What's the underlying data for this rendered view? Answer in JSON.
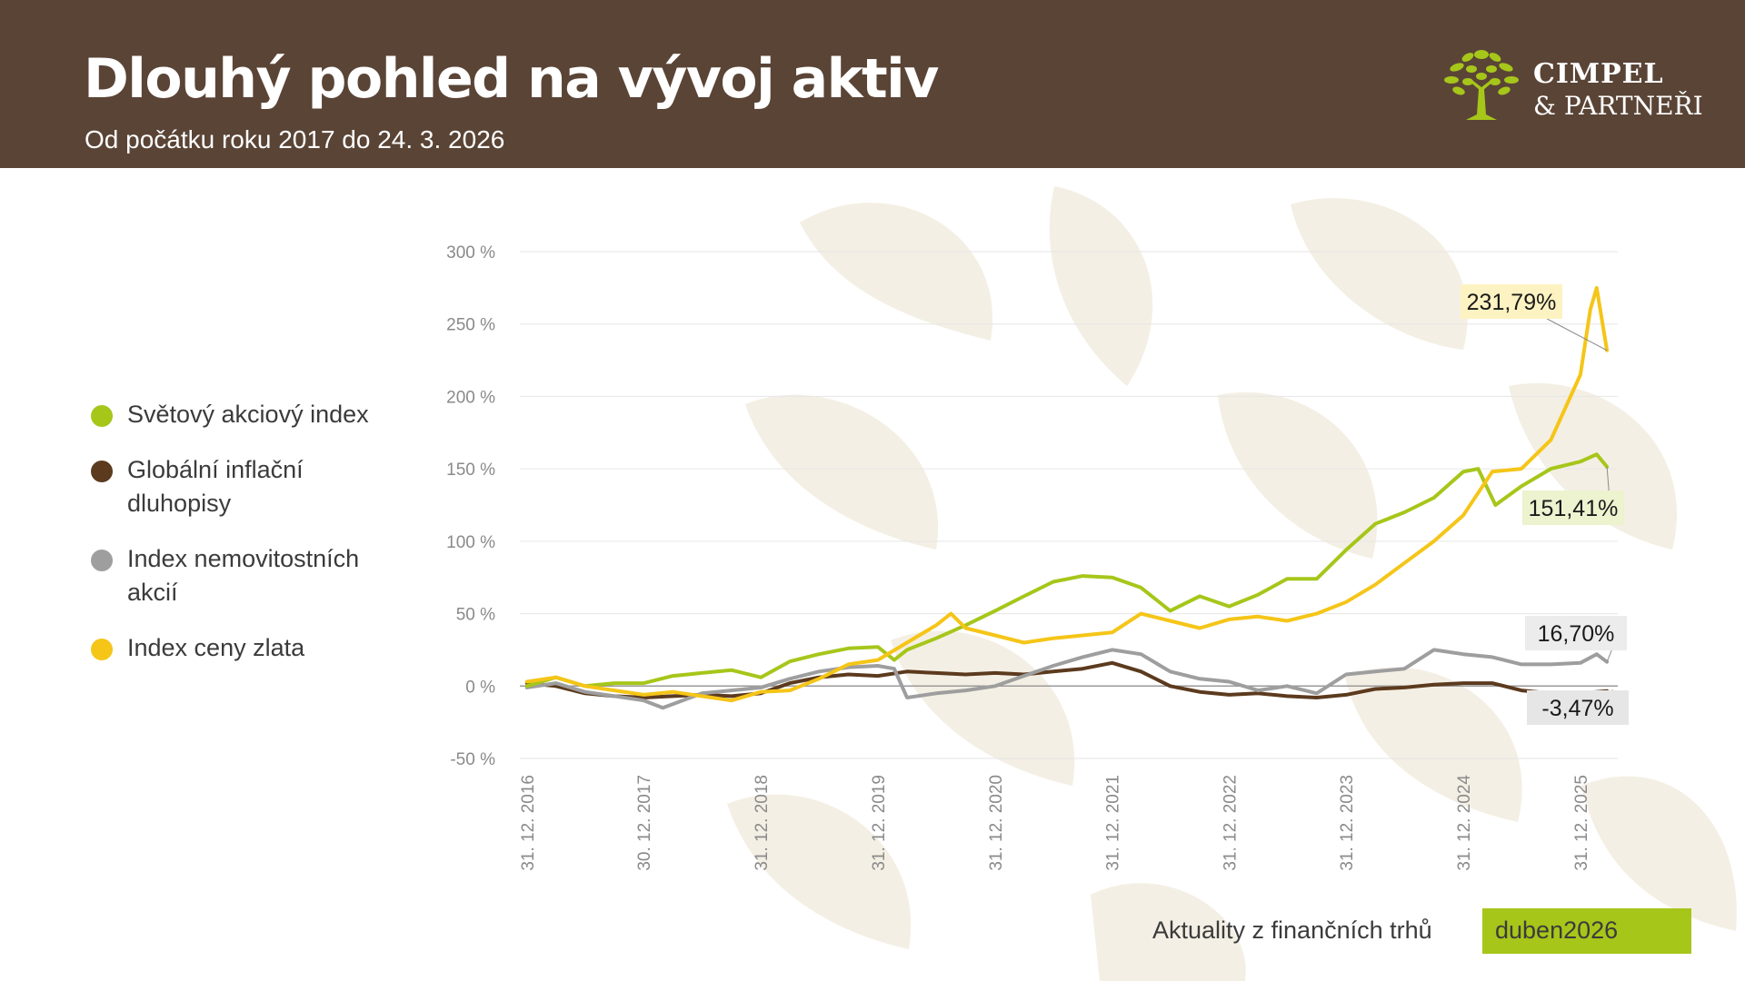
{
  "header": {
    "title": "Dlouhý pohled na vývoj aktiv",
    "subtitle": "Od počátku roku 2017 do 24. 3. 2026"
  },
  "brand": {
    "line1": "CIMPEL",
    "line2": "& PARTNEŘI",
    "icon": "tree-icon"
  },
  "colors": {
    "header_bg": "#5a4436",
    "world_stocks": "#a6c61a",
    "inflation_bonds": "#5c3a1e",
    "real_estate": "#9e9e9e",
    "gold": "#f5c518",
    "badge": "#a6c61a"
  },
  "legend": [
    {
      "label_lines": [
        "Světový akciový index"
      ],
      "color": "#a6c61a"
    },
    {
      "label_lines": [
        "Globální inflační",
        "dluhopisy"
      ],
      "color": "#5c3a1e"
    },
    {
      "label_lines": [
        "Index nemovitostních",
        "akcií"
      ],
      "color": "#9e9e9e"
    },
    {
      "label_lines": [
        "Index ceny zlata"
      ],
      "color": "#f5c518"
    }
  ],
  "footer": {
    "text": "Aktuality z finančních trhů",
    "badge": "duben2026"
  },
  "chart_data": {
    "type": "line",
    "title": "",
    "xlabel": "",
    "ylabel": "",
    "ylim": [
      -50,
      300
    ],
    "y_ticks": [
      -50,
      0,
      50,
      100,
      150,
      200,
      250,
      300
    ],
    "y_tick_labels": [
      "-50 %",
      "0 %",
      "50 %",
      "100 %",
      "150 %",
      "200 %",
      "250 %",
      "300 %"
    ],
    "x_start": "2016-12-31",
    "x_end": "2026-03-24",
    "x_ticks": [
      {
        "date": "2016-12-31",
        "label": "31. 12. 2016"
      },
      {
        "date": "2017-12-30",
        "label": "30. 12. 2017"
      },
      {
        "date": "2018-12-31",
        "label": "31. 12. 2018"
      },
      {
        "date": "2019-12-31",
        "label": "31. 12. 2019"
      },
      {
        "date": "2020-12-31",
        "label": "31. 12. 2020"
      },
      {
        "date": "2021-12-31",
        "label": "31. 12. 2021"
      },
      {
        "date": "2022-12-31",
        "label": "31. 12. 2022"
      },
      {
        "date": "2023-12-31",
        "label": "31. 12. 2023"
      },
      {
        "date": "2024-12-31",
        "label": "31. 12. 2024"
      },
      {
        "date": "2025-12-31",
        "label": "31. 12. 2025"
      }
    ],
    "grid": true,
    "legend_position": "left",
    "series": [
      {
        "name": "Světový akciový index",
        "color": "#a6c61a",
        "end_label": "151,41%",
        "points": [
          [
            "2016-12-31",
            0
          ],
          [
            "2017-03-31",
            6
          ],
          [
            "2017-06-30",
            0
          ],
          [
            "2017-09-30",
            2
          ],
          [
            "2017-12-31",
            2
          ],
          [
            "2018-03-31",
            7
          ],
          [
            "2018-06-30",
            9
          ],
          [
            "2018-09-30",
            11
          ],
          [
            "2018-12-31",
            6
          ],
          [
            "2019-03-31",
            17
          ],
          [
            "2019-06-30",
            22
          ],
          [
            "2019-09-30",
            26
          ],
          [
            "2019-12-31",
            27
          ],
          [
            "2020-02-20",
            18
          ],
          [
            "2020-03-31",
            25
          ],
          [
            "2020-06-30",
            33
          ],
          [
            "2020-09-30",
            42
          ],
          [
            "2020-12-31",
            52
          ],
          [
            "2021-03-31",
            62
          ],
          [
            "2021-06-30",
            72
          ],
          [
            "2021-09-30",
            76
          ],
          [
            "2021-12-31",
            75
          ],
          [
            "2022-03-31",
            68
          ],
          [
            "2022-06-30",
            52
          ],
          [
            "2022-09-30",
            62
          ],
          [
            "2022-12-31",
            55
          ],
          [
            "2023-03-31",
            63
          ],
          [
            "2023-06-30",
            74
          ],
          [
            "2023-09-30",
            74
          ],
          [
            "2023-12-31",
            94
          ],
          [
            "2024-03-31",
            112
          ],
          [
            "2024-06-30",
            120
          ],
          [
            "2024-09-30",
            130
          ],
          [
            "2024-12-31",
            148
          ],
          [
            "2025-02-15",
            150
          ],
          [
            "2025-04-10",
            125
          ],
          [
            "2025-06-30",
            138
          ],
          [
            "2025-09-30",
            150
          ],
          [
            "2025-12-31",
            155
          ],
          [
            "2026-02-20",
            160
          ],
          [
            "2026-03-24",
            151.41
          ]
        ]
      },
      {
        "name": "Globální inflační dluhopisy",
        "color": "#5c3a1e",
        "end_label": "-3,47%",
        "points": [
          [
            "2016-12-31",
            2
          ],
          [
            "2017-03-31",
            0
          ],
          [
            "2017-06-30",
            -5
          ],
          [
            "2017-09-30",
            -7
          ],
          [
            "2017-12-31",
            -8
          ],
          [
            "2018-03-31",
            -7
          ],
          [
            "2018-06-30",
            -6
          ],
          [
            "2018-09-30",
            -7
          ],
          [
            "2018-12-31",
            -5
          ],
          [
            "2019-03-31",
            2
          ],
          [
            "2019-06-30",
            6
          ],
          [
            "2019-09-30",
            8
          ],
          [
            "2019-12-31",
            7
          ],
          [
            "2020-03-31",
            10
          ],
          [
            "2020-06-30",
            9
          ],
          [
            "2020-09-30",
            8
          ],
          [
            "2020-12-31",
            9
          ],
          [
            "2021-03-31",
            8
          ],
          [
            "2021-06-30",
            10
          ],
          [
            "2021-09-30",
            12
          ],
          [
            "2021-12-31",
            16
          ],
          [
            "2022-03-31",
            10
          ],
          [
            "2022-06-30",
            0
          ],
          [
            "2022-09-30",
            -4
          ],
          [
            "2022-12-31",
            -6
          ],
          [
            "2023-03-31",
            -5
          ],
          [
            "2023-06-30",
            -7
          ],
          [
            "2023-09-30",
            -8
          ],
          [
            "2023-12-31",
            -6
          ],
          [
            "2024-03-31",
            -2
          ],
          [
            "2024-06-30",
            -1
          ],
          [
            "2024-09-30",
            1
          ],
          [
            "2024-12-31",
            2
          ],
          [
            "2025-03-31",
            2
          ],
          [
            "2025-06-30",
            -3
          ],
          [
            "2025-09-30",
            -5
          ],
          [
            "2025-12-31",
            -5
          ],
          [
            "2026-03-24",
            -3.47
          ]
        ]
      },
      {
        "name": "Index nemovitostních akcií",
        "color": "#9e9e9e",
        "end_label": "16,70%",
        "points": [
          [
            "2016-12-31",
            -1
          ],
          [
            "2017-03-31",
            2
          ],
          [
            "2017-06-30",
            -4
          ],
          [
            "2017-09-30",
            -7
          ],
          [
            "2017-12-31",
            -10
          ],
          [
            "2018-02-28",
            -15
          ],
          [
            "2018-06-30",
            -5
          ],
          [
            "2018-09-30",
            -3
          ],
          [
            "2018-12-31",
            -1
          ],
          [
            "2019-03-31",
            5
          ],
          [
            "2019-06-30",
            10
          ],
          [
            "2019-09-30",
            13
          ],
          [
            "2019-12-31",
            14
          ],
          [
            "2020-02-20",
            12
          ],
          [
            "2020-03-31",
            -8
          ],
          [
            "2020-06-30",
            -5
          ],
          [
            "2020-09-30",
            -3
          ],
          [
            "2020-12-31",
            0
          ],
          [
            "2021-03-31",
            7
          ],
          [
            "2021-06-30",
            14
          ],
          [
            "2021-09-30",
            20
          ],
          [
            "2021-12-31",
            25
          ],
          [
            "2022-03-31",
            22
          ],
          [
            "2022-06-30",
            10
          ],
          [
            "2022-09-30",
            5
          ],
          [
            "2022-12-31",
            3
          ],
          [
            "2023-03-31",
            -3
          ],
          [
            "2023-06-30",
            0
          ],
          [
            "2023-09-30",
            -5
          ],
          [
            "2023-12-31",
            8
          ],
          [
            "2024-03-31",
            10
          ],
          [
            "2024-06-30",
            12
          ],
          [
            "2024-09-30",
            25
          ],
          [
            "2024-12-31",
            22
          ],
          [
            "2025-03-31",
            20
          ],
          [
            "2025-06-30",
            15
          ],
          [
            "2025-09-30",
            15
          ],
          [
            "2025-12-31",
            16
          ],
          [
            "2026-02-20",
            22
          ],
          [
            "2026-03-24",
            16.7
          ]
        ]
      },
      {
        "name": "Index ceny zlata",
        "color": "#f5c518",
        "end_label": "231,79%",
        "points": [
          [
            "2016-12-31",
            3
          ],
          [
            "2017-03-31",
            6
          ],
          [
            "2017-06-30",
            0
          ],
          [
            "2017-09-30",
            -3
          ],
          [
            "2017-12-31",
            -6
          ],
          [
            "2018-03-31",
            -4
          ],
          [
            "2018-06-30",
            -7
          ],
          [
            "2018-09-30",
            -10
          ],
          [
            "2018-12-31",
            -4
          ],
          [
            "2019-03-31",
            -3
          ],
          [
            "2019-06-30",
            5
          ],
          [
            "2019-09-30",
            15
          ],
          [
            "2019-12-31",
            18
          ],
          [
            "2020-03-31",
            30
          ],
          [
            "2020-06-30",
            42
          ],
          [
            "2020-08-15",
            50
          ],
          [
            "2020-09-30",
            40
          ],
          [
            "2020-12-31",
            35
          ],
          [
            "2021-03-31",
            30
          ],
          [
            "2021-06-30",
            33
          ],
          [
            "2021-09-30",
            35
          ],
          [
            "2021-12-31",
            37
          ],
          [
            "2022-03-31",
            50
          ],
          [
            "2022-06-30",
            45
          ],
          [
            "2022-09-30",
            40
          ],
          [
            "2022-12-31",
            46
          ],
          [
            "2023-03-31",
            48
          ],
          [
            "2023-06-30",
            45
          ],
          [
            "2023-09-30",
            50
          ],
          [
            "2023-12-31",
            58
          ],
          [
            "2024-03-31",
            70
          ],
          [
            "2024-06-30",
            85
          ],
          [
            "2024-09-30",
            100
          ],
          [
            "2024-12-31",
            118
          ],
          [
            "2025-03-31",
            148
          ],
          [
            "2025-06-30",
            150
          ],
          [
            "2025-09-30",
            170
          ],
          [
            "2025-12-31",
            215
          ],
          [
            "2026-01-31",
            260
          ],
          [
            "2026-02-20",
            275
          ],
          [
            "2026-03-24",
            231.79
          ]
        ]
      }
    ]
  }
}
